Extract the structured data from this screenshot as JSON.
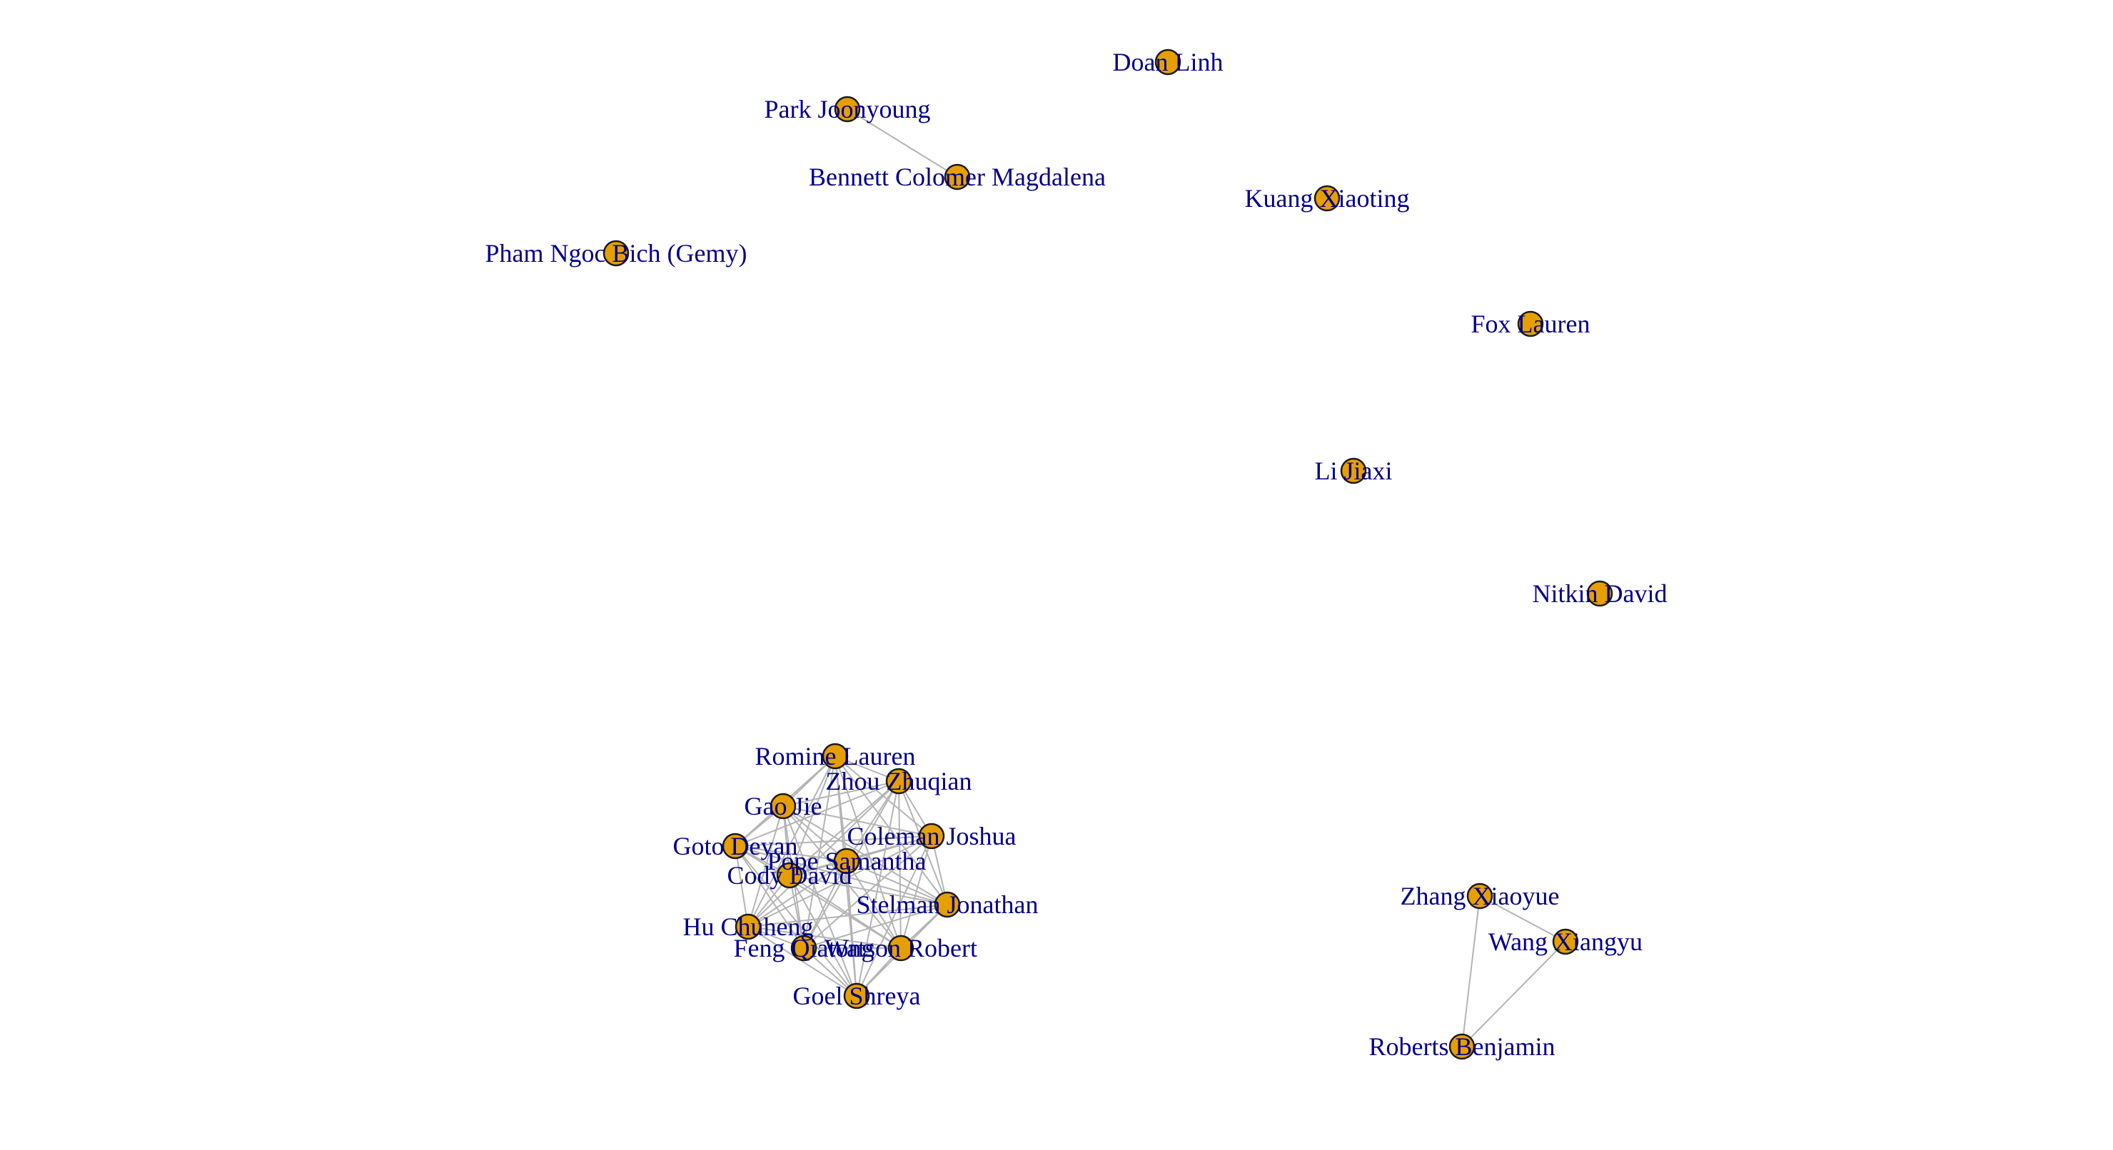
{
  "graph": {
    "node_color": "#e69f00",
    "edge_color": "#b4b4b4",
    "label_color": "#00008b",
    "nodes": [
      {
        "id": "doan",
        "label": "Doan Linh"
      },
      {
        "id": "park",
        "label": "Park Joonyoung"
      },
      {
        "id": "bennett",
        "label": "Bennett Colomer Magdalena"
      },
      {
        "id": "kuang",
        "label": "Kuang Xiaoting"
      },
      {
        "id": "pham",
        "label": "Pham Ngoc Bich (Gemy)"
      },
      {
        "id": "fox",
        "label": "Fox Lauren"
      },
      {
        "id": "li",
        "label": "Li Jiaxi"
      },
      {
        "id": "nitkin",
        "label": "Nitkin David"
      },
      {
        "id": "romine",
        "label": "Romine Lauren"
      },
      {
        "id": "zhou",
        "label": "Zhou Zhuqian"
      },
      {
        "id": "gao",
        "label": "Gao Jie"
      },
      {
        "id": "coleman",
        "label": "Coleman Joshua"
      },
      {
        "id": "goto",
        "label": "Goto Deyan"
      },
      {
        "id": "pope",
        "label": "Pope Samantha"
      },
      {
        "id": "cody",
        "label": "Cody David"
      },
      {
        "id": "stelman",
        "label": "Stelman Jonathan"
      },
      {
        "id": "hu",
        "label": "Hu Chuheng"
      },
      {
        "id": "feng",
        "label": "Feng Qiatong"
      },
      {
        "id": "watson",
        "label": "Watson Robert"
      },
      {
        "id": "goel",
        "label": "Goel Shreya"
      },
      {
        "id": "zhang",
        "label": "Zhang Xiaoyue"
      },
      {
        "id": "wang",
        "label": "Wang Xiangyu"
      },
      {
        "id": "roberts",
        "label": "Roberts Benjamin"
      }
    ],
    "edges": [
      [
        "park",
        "bennett"
      ],
      [
        "zhang",
        "wang"
      ],
      [
        "zhang",
        "roberts"
      ],
      [
        "wang",
        "roberts"
      ],
      [
        "romine",
        "zhou"
      ],
      [
        "romine",
        "gao"
      ],
      [
        "romine",
        "coleman"
      ],
      [
        "romine",
        "goto"
      ],
      [
        "romine",
        "pope"
      ],
      [
        "romine",
        "cody"
      ],
      [
        "romine",
        "stelman"
      ],
      [
        "romine",
        "hu"
      ],
      [
        "romine",
        "feng"
      ],
      [
        "romine",
        "watson"
      ],
      [
        "romine",
        "goel"
      ],
      [
        "zhou",
        "gao"
      ],
      [
        "zhou",
        "coleman"
      ],
      [
        "zhou",
        "goto"
      ],
      [
        "zhou",
        "pope"
      ],
      [
        "zhou",
        "cody"
      ],
      [
        "zhou",
        "stelman"
      ],
      [
        "zhou",
        "hu"
      ],
      [
        "zhou",
        "feng"
      ],
      [
        "zhou",
        "watson"
      ],
      [
        "zhou",
        "goel"
      ],
      [
        "gao",
        "coleman"
      ],
      [
        "gao",
        "goto"
      ],
      [
        "gao",
        "pope"
      ],
      [
        "gao",
        "cody"
      ],
      [
        "gao",
        "stelman"
      ],
      [
        "gao",
        "hu"
      ],
      [
        "gao",
        "feng"
      ],
      [
        "gao",
        "watson"
      ],
      [
        "gao",
        "goel"
      ],
      [
        "coleman",
        "goto"
      ],
      [
        "coleman",
        "pope"
      ],
      [
        "coleman",
        "cody"
      ],
      [
        "coleman",
        "stelman"
      ],
      [
        "coleman",
        "hu"
      ],
      [
        "coleman",
        "feng"
      ],
      [
        "coleman",
        "watson"
      ],
      [
        "coleman",
        "goel"
      ],
      [
        "goto",
        "pope"
      ],
      [
        "goto",
        "cody"
      ],
      [
        "goto",
        "stelman"
      ],
      [
        "goto",
        "hu"
      ],
      [
        "goto",
        "feng"
      ],
      [
        "goto",
        "watson"
      ],
      [
        "goto",
        "goel"
      ],
      [
        "pope",
        "cody"
      ],
      [
        "pope",
        "stelman"
      ],
      [
        "pope",
        "hu"
      ],
      [
        "pope",
        "feng"
      ],
      [
        "pope",
        "watson"
      ],
      [
        "pope",
        "goel"
      ],
      [
        "cody",
        "stelman"
      ],
      [
        "cody",
        "hu"
      ],
      [
        "cody",
        "feng"
      ],
      [
        "cody",
        "watson"
      ],
      [
        "cody",
        "goel"
      ],
      [
        "stelman",
        "hu"
      ],
      [
        "stelman",
        "feng"
      ],
      [
        "stelman",
        "watson"
      ],
      [
        "stelman",
        "goel"
      ],
      [
        "hu",
        "feng"
      ],
      [
        "hu",
        "watson"
      ],
      [
        "hu",
        "goel"
      ],
      [
        "feng",
        "watson"
      ],
      [
        "feng",
        "goel"
      ],
      [
        "watson",
        "goel"
      ]
    ]
  }
}
